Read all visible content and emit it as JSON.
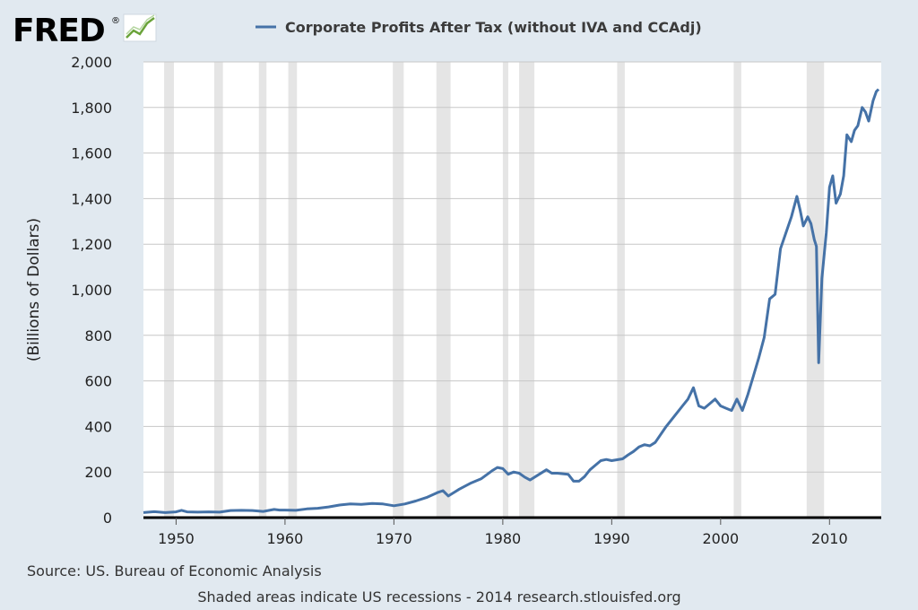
{
  "logo": {
    "text": "FRED",
    "registered_mark": "®",
    "icon": "fred-chart-logo-icon"
  },
  "colors": {
    "background": "#e1e9f0",
    "plot_background": "#ffffff",
    "series_line": "#4572a7",
    "recession_shade": "#e5e5e5",
    "grid": "#c7c7c7",
    "axis": "#000000"
  },
  "footer": {
    "source": "Source: US. Bureau of Economic Analysis",
    "note": "Shaded areas indicate US recessions - 2014 research.stlouisfed.org"
  },
  "chart_data": {
    "type": "line",
    "title": "",
    "xlabel": "",
    "ylabel": "(Billions of Dollars)",
    "xlim": [
      1947.0,
      2014.75
    ],
    "ylim": [
      0,
      2000
    ],
    "xticks": [
      1950,
      1960,
      1970,
      1980,
      1990,
      2000,
      2010
    ],
    "yticks": [
      0,
      200,
      400,
      600,
      800,
      1000,
      1200,
      1400,
      1600,
      1800,
      2000
    ],
    "ytick_labels": [
      "0",
      "200",
      "400",
      "600",
      "800",
      "1,000",
      "1,200",
      "1,400",
      "1,600",
      "1,800",
      "2,000"
    ],
    "grid": true,
    "legend_position": "top",
    "recessions": [
      [
        1948.9,
        1949.8
      ],
      [
        1953.5,
        1954.3
      ],
      [
        1957.6,
        1958.3
      ],
      [
        1960.3,
        1961.1
      ],
      [
        1969.9,
        1970.9
      ],
      [
        1973.9,
        1975.2
      ],
      [
        1980.0,
        1980.5
      ],
      [
        1981.5,
        1982.9
      ],
      [
        1990.5,
        1991.2
      ],
      [
        2001.2,
        2001.9
      ],
      [
        2007.9,
        2009.5
      ]
    ],
    "series": [
      {
        "name": "Corporate Profits After Tax (without IVA and CCAdj)",
        "x": [
          1947.0,
          1948.0,
          1949.0,
          1950.0,
          1950.5,
          1951.0,
          1952.0,
          1953.0,
          1954.0,
          1955.0,
          1956.0,
          1957.0,
          1958.0,
          1959.0,
          1959.5,
          1960.0,
          1961.0,
          1962.0,
          1963.0,
          1964.0,
          1965.0,
          1966.0,
          1967.0,
          1968.0,
          1969.0,
          1970.0,
          1971.0,
          1972.0,
          1973.0,
          1974.0,
          1974.5,
          1975.0,
          1976.0,
          1977.0,
          1978.0,
          1979.0,
          1979.5,
          1980.0,
          1980.5,
          1981.0,
          1981.5,
          1982.0,
          1982.5,
          1983.0,
          1984.0,
          1984.5,
          1985.0,
          1986.0,
          1986.5,
          1987.0,
          1987.5,
          1988.0,
          1988.5,
          1989.0,
          1989.5,
          1990.0,
          1991.0,
          1991.5,
          1992.0,
          1992.5,
          1993.0,
          1993.5,
          1994.0,
          1995.0,
          1996.0,
          1996.5,
          1997.0,
          1997.5,
          1998.0,
          1998.5,
          1999.0,
          1999.5,
          2000.0,
          2000.5,
          2001.0,
          2001.5,
          2002.0,
          2002.5,
          2003.0,
          2003.5,
          2004.0,
          2004.5,
          2005.0,
          2005.5,
          2006.0,
          2006.5,
          2007.0,
          2007.3,
          2007.6,
          2008.0,
          2008.3,
          2008.6,
          2008.8,
          2009.0,
          2009.3,
          2009.7,
          2010.0,
          2010.3,
          2010.6,
          2011.0,
          2011.3,
          2011.6,
          2012.0,
          2012.3,
          2012.6,
          2013.0,
          2013.3,
          2013.6,
          2014.0,
          2014.3,
          2014.5
        ],
        "values": [
          22,
          26,
          22,
          25,
          32,
          25,
          24,
          25,
          24,
          31,
          32,
          31,
          27,
          36,
          33,
          33,
          32,
          38,
          41,
          47,
          55,
          60,
          58,
          62,
          60,
          52,
          60,
          73,
          88,
          110,
          118,
          95,
          125,
          150,
          170,
          205,
          220,
          215,
          190,
          200,
          195,
          178,
          165,
          180,
          210,
          195,
          195,
          190,
          160,
          160,
          180,
          210,
          230,
          250,
          255,
          250,
          258,
          275,
          290,
          310,
          320,
          315,
          330,
          400,
          460,
          490,
          520,
          570,
          490,
          480,
          500,
          520,
          490,
          480,
          470,
          520,
          470,
          540,
          620,
          700,
          790,
          960,
          980,
          1180,
          1250,
          1320,
          1410,
          1350,
          1280,
          1320,
          1290,
          1220,
          1190,
          680,
          1050,
          1250,
          1450,
          1500,
          1380,
          1420,
          1500,
          1680,
          1650,
          1700,
          1720,
          1800,
          1780,
          1740,
          1830,
          1870,
          1880
        ]
      }
    ]
  }
}
